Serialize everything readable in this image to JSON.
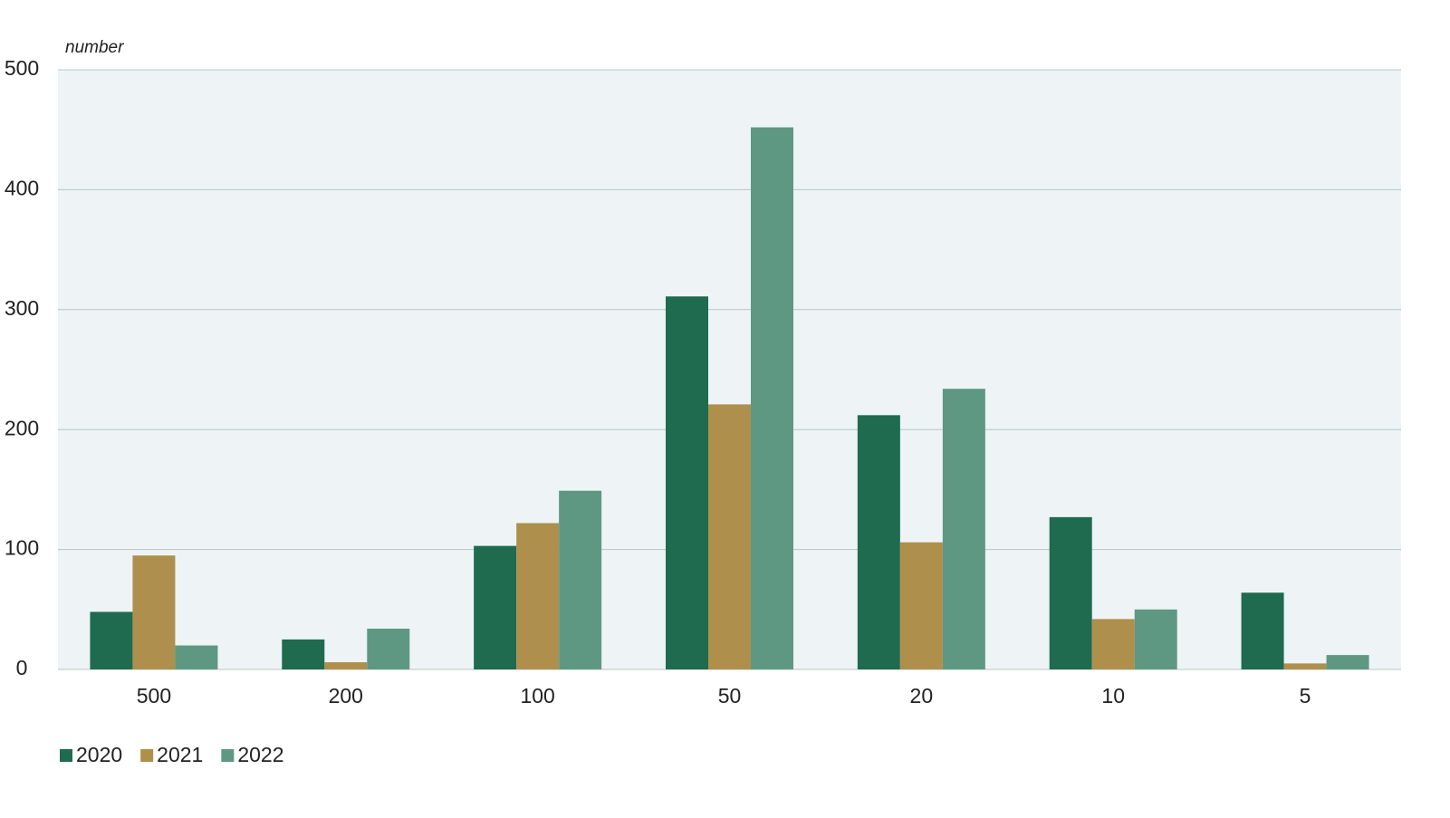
{
  "chart_data": {
    "type": "bar",
    "y_axis_label": "number",
    "categories": [
      "500",
      "200",
      "100",
      "50",
      "20",
      "10",
      "5"
    ],
    "series": [
      {
        "name": "2020",
        "color": "#1e6b50",
        "values": [
          48,
          25,
          103,
          311,
          212,
          127,
          64
        ]
      },
      {
        "name": "2021",
        "color": "#ae904c",
        "values": [
          95,
          6,
          122,
          221,
          106,
          42,
          5
        ]
      },
      {
        "name": "2022",
        "color": "#5f9882",
        "values": [
          20,
          34,
          149,
          452,
          234,
          50,
          12
        ]
      }
    ],
    "ylim": [
      0,
      500
    ],
    "yticks": [
      0,
      100,
      200,
      300,
      400,
      500
    ],
    "grid": true,
    "legend": "bottom-left"
  }
}
